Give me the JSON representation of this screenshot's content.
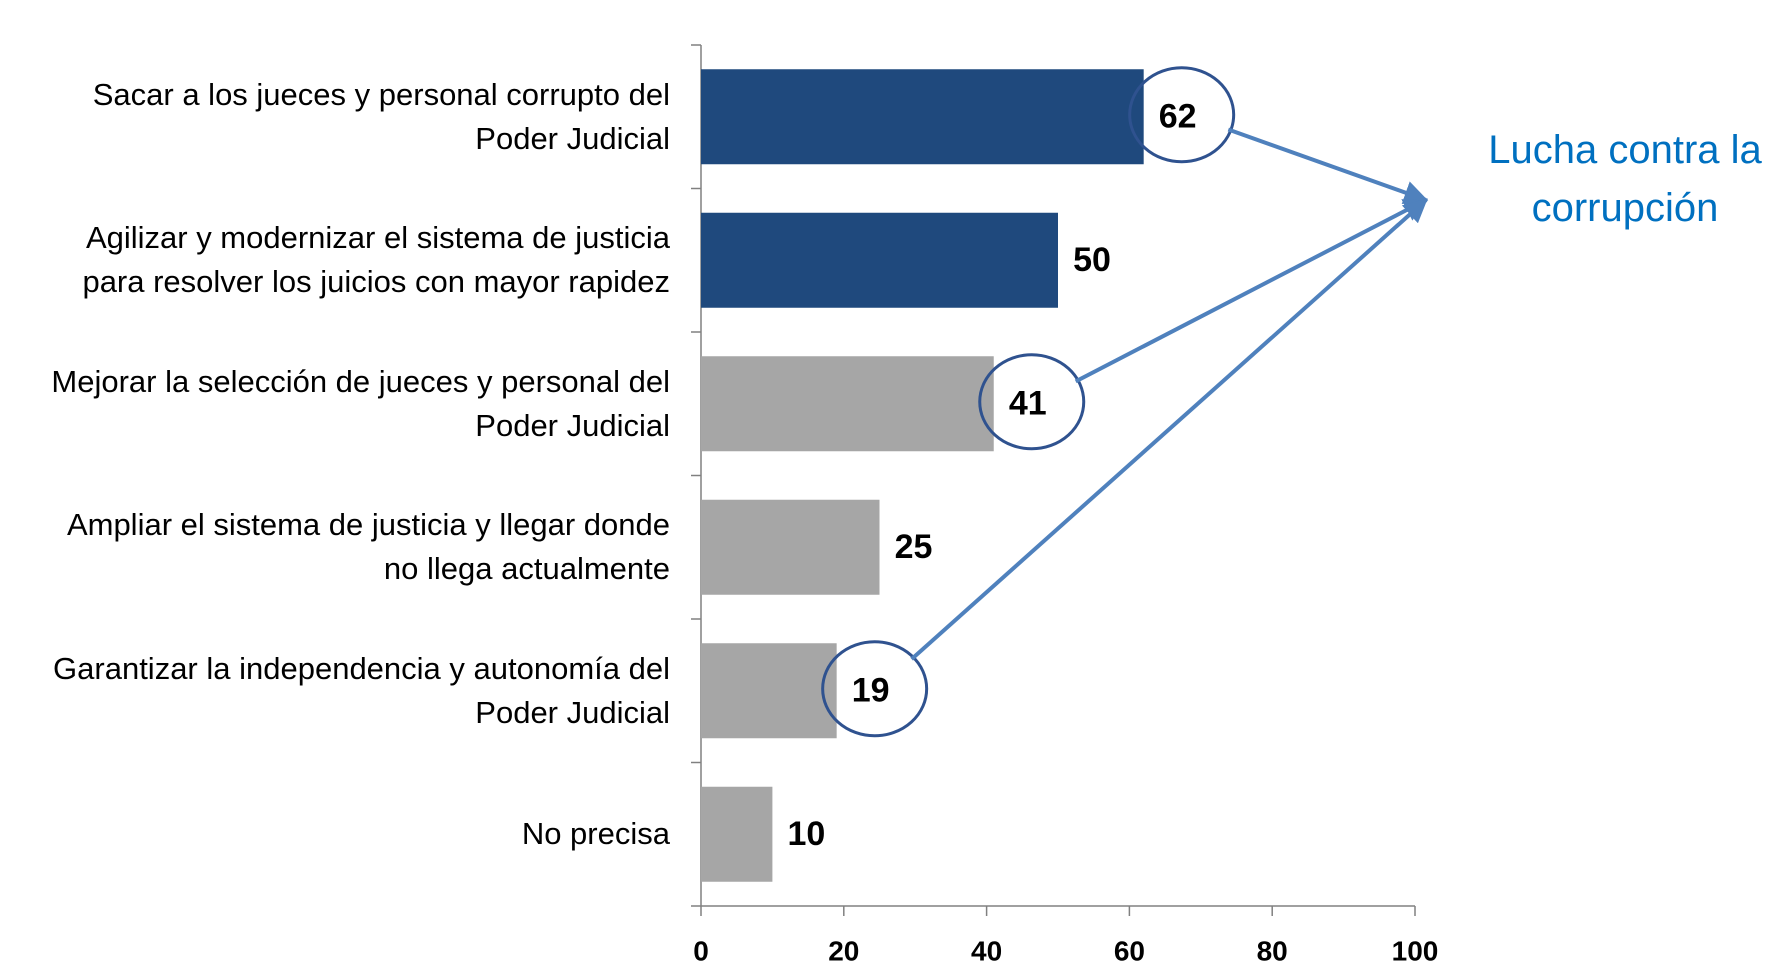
{
  "chart_data": {
    "type": "barh",
    "categories": [
      "Sacar a los jueces y personal corrupto del\nPoder Judicial",
      "Agilizar y modernizar el sistema de justicia\npara resolver los juicios con mayor rapidez",
      "Mejorar la selección de jueces y personal del\nPoder Judicial",
      "Ampliar el sistema de justicia y llegar donde\nno llega actualmente",
      "Garantizar la independencia y autonomía del\nPoder Judicial",
      "No precisa"
    ],
    "values": [
      62,
      50,
      41,
      25,
      19,
      10
    ],
    "colors": [
      "#1f497d",
      "#1f497d",
      "#a6a6a6",
      "#a6a6a6",
      "#a6a6a6",
      "#a6a6a6"
    ],
    "xlim": [
      0,
      100
    ],
    "xticks": [
      0,
      20,
      40,
      60,
      80,
      100
    ],
    "annotation": {
      "text": "Lucha contra la\ncorrupción",
      "highlighted": [
        0,
        2,
        4
      ]
    }
  }
}
